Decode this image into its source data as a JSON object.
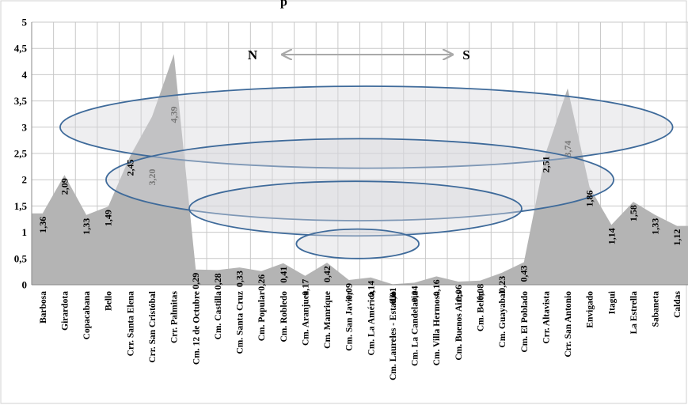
{
  "title_fragment": "p",
  "direction": {
    "north": "N",
    "south": "S"
  },
  "colors": {
    "area": "#b4b4b4",
    "grid": "#c8c8c8",
    "ellipse_stroke": "#3e6a9a",
    "arrow": "#a9a9a9"
  },
  "chart_data": {
    "type": "area",
    "ylim": [
      0,
      5
    ],
    "yticks": [
      "0",
      "0,5",
      "1",
      "1,5",
      "2",
      "2,5",
      "3",
      "3,5",
      "4",
      "4,5",
      "5"
    ],
    "grid": true,
    "categories": [
      "Barbosa",
      "Girardota",
      "Copacabana",
      "Bello",
      "Crr. Santa Elena",
      "Crr. San Cristóbal",
      "Crr. Palmitas",
      "Cm. 12 de Octubre",
      "Cm. Castilla",
      "Cm. Santa Cruz",
      "Cm. Popular",
      "Cm. Robledo",
      "Cm. Aranjuez",
      "Cm. Manrique",
      "Cm. San Javier",
      "Cm. La América",
      "Cm. Laureles - Estadio",
      "Cm. La Candelaria",
      "Cm. Villa Hermosa",
      "Cm. Buenos Aires",
      "Cm. Belén",
      "Cm. Guayabal",
      "Cm. El Poblado",
      "Crr. Altavista",
      "Crr. San Antonio",
      "Envigado",
      "Itagui",
      "La Estrella",
      "Sabaneta",
      "Caldas"
    ],
    "values": [
      1.36,
      2.09,
      1.33,
      1.49,
      2.45,
      3.2,
      4.39,
      0.29,
      0.28,
      0.33,
      0.26,
      0.41,
      0.17,
      0.42,
      0.09,
      0.14,
      0.01,
      0.04,
      0.16,
      0.06,
      0.08,
      0.23,
      0.43,
      2.51,
      3.74,
      1.86,
      1.14,
      1.58,
      1.33,
      1.12
    ],
    "data_labels": [
      "1,36",
      "2,09",
      "1,33",
      "1,49",
      "2,45",
      "3,20",
      "4,39",
      "0,29",
      "0,28",
      "0,33",
      "0,26",
      "0,41",
      "0,17",
      "0,42",
      "0,09",
      "0,14",
      "0,01",
      "0,04",
      "0,16",
      "0,06",
      "0,08",
      "0,23",
      "0,43",
      "2,51",
      "3,74",
      "1,86",
      "1,14",
      "1,58",
      "1,33",
      "1,12"
    ],
    "ellipses": [
      {
        "cx_index": 14.8,
        "cy_value": 3.0,
        "rx_categories": 14.0,
        "ry_value": 0.78
      },
      {
        "cx_index": 14.5,
        "cy_value": 2.0,
        "rx_categories": 11.6,
        "ry_value": 0.78
      },
      {
        "cx_index": 14.3,
        "cy_value": 1.45,
        "rx_categories": 7.6,
        "ry_value": 0.52
      },
      {
        "cx_index": 14.4,
        "cy_value": 0.78,
        "rx_categories": 2.8,
        "ry_value": 0.28
      }
    ]
  }
}
